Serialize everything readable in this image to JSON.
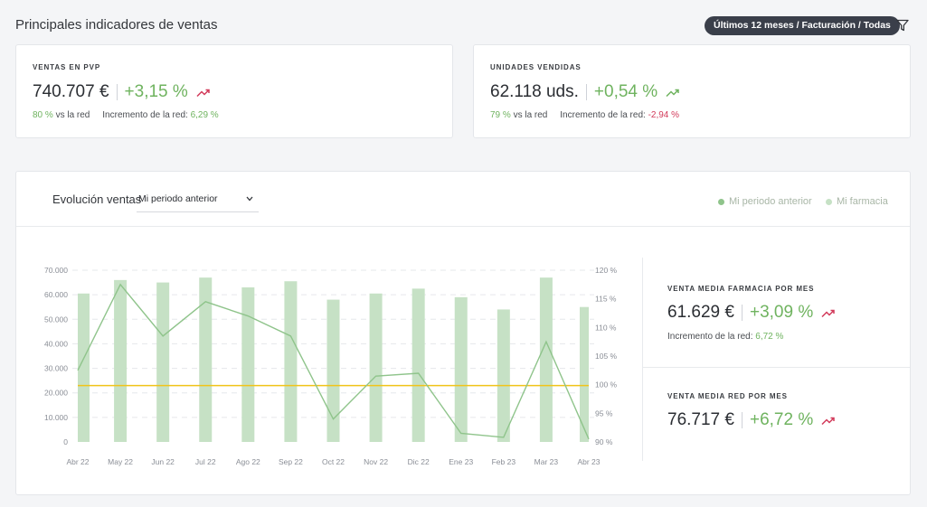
{
  "header": {
    "title": "Principales indicadores de ventas",
    "filter_label": "Últimos 12 meses / Facturación / Todas"
  },
  "kpis": {
    "ventas": {
      "label": "VENTAS EN PVP",
      "value": "740.707 €",
      "change": "+3,15 %",
      "sub_pct": "80 %",
      "sub_vs": "vs la red",
      "sub_inc_label": "Incremento de la red:",
      "sub_inc_value": "6,29 %"
    },
    "unidades": {
      "label": "UNIDADES VENDIDAS",
      "value": "62.118 uds.",
      "change": "+0,54 %",
      "sub_pct": "79 %",
      "sub_vs": "vs la red",
      "sub_inc_label": "Incremento de la red:",
      "sub_inc_value": "-2,94 %"
    }
  },
  "evolution": {
    "title": "Evolución ventas",
    "select_value": "Mi periodo anterior",
    "legend": [
      "Mi periodo anterior",
      "Mi farmacia"
    ],
    "side": {
      "farmacia": {
        "label": "VENTA MEDIA FARMACIA POR MES",
        "value": "61.629 €",
        "change": "+3,09 %",
        "sub_label": "Incremento de la red:",
        "sub_value": "6,72 %"
      },
      "red": {
        "label": "VENTA MEDIA RED POR MES",
        "value": "76.717 €",
        "change": "+6,72 %"
      }
    }
  },
  "colors": {
    "bar": "#c6e1c5",
    "line": "#8fc48b",
    "avg_line": "#f0c419",
    "positive": "#6fb35f",
    "negative": "#d23a5a",
    "pill_bg": "#3a3f4a"
  },
  "icons": {
    "filter": "filter-icon",
    "trend": "trend-up-icon",
    "chevron": "chevron-down-icon"
  },
  "chart_data": {
    "type": "bar",
    "categories": [
      "Abr 22",
      "May 22",
      "Jun 22",
      "Jul 22",
      "Ago 22",
      "Sep 22",
      "Oct 22",
      "Nov 22",
      "Dic 22",
      "Ene 23",
      "Feb 23",
      "Mar 23",
      "Abr 23"
    ],
    "series": [
      {
        "name": "Mi farmacia",
        "type": "bar",
        "axis": "left",
        "values": [
          60500,
          66000,
          65000,
          67000,
          63000,
          65500,
          58000,
          60500,
          62500,
          59000,
          54000,
          67000,
          55000
        ]
      },
      {
        "type": "line",
        "axis": "right",
        "values": [
          102.5,
          117.5,
          108.5,
          114.5,
          112,
          108.5,
          94,
          101.5,
          102,
          91.5,
          90.8,
          107.5,
          90.5
        ]
      },
      {
        "type": "line",
        "axis": "left",
        "values": [
          23000,
          23000,
          23000,
          23000,
          23000,
          23000,
          23000,
          23000,
          23000,
          23000,
          23000,
          23000,
          23000
        ]
      }
    ],
    "ylim": [
      0,
      70000
    ],
    "yticks": [
      "0",
      "10.000",
      "20.000",
      "30.000",
      "40.000",
      "50.000",
      "60.000",
      "70.000"
    ],
    "y2lim": [
      90,
      120
    ],
    "y2ticks": [
      "90 %",
      "95 %",
      "100 %",
      "105 %",
      "110 %",
      "115 %",
      "120 %"
    ],
    "legend_position": "top-right",
    "grid": true
  }
}
